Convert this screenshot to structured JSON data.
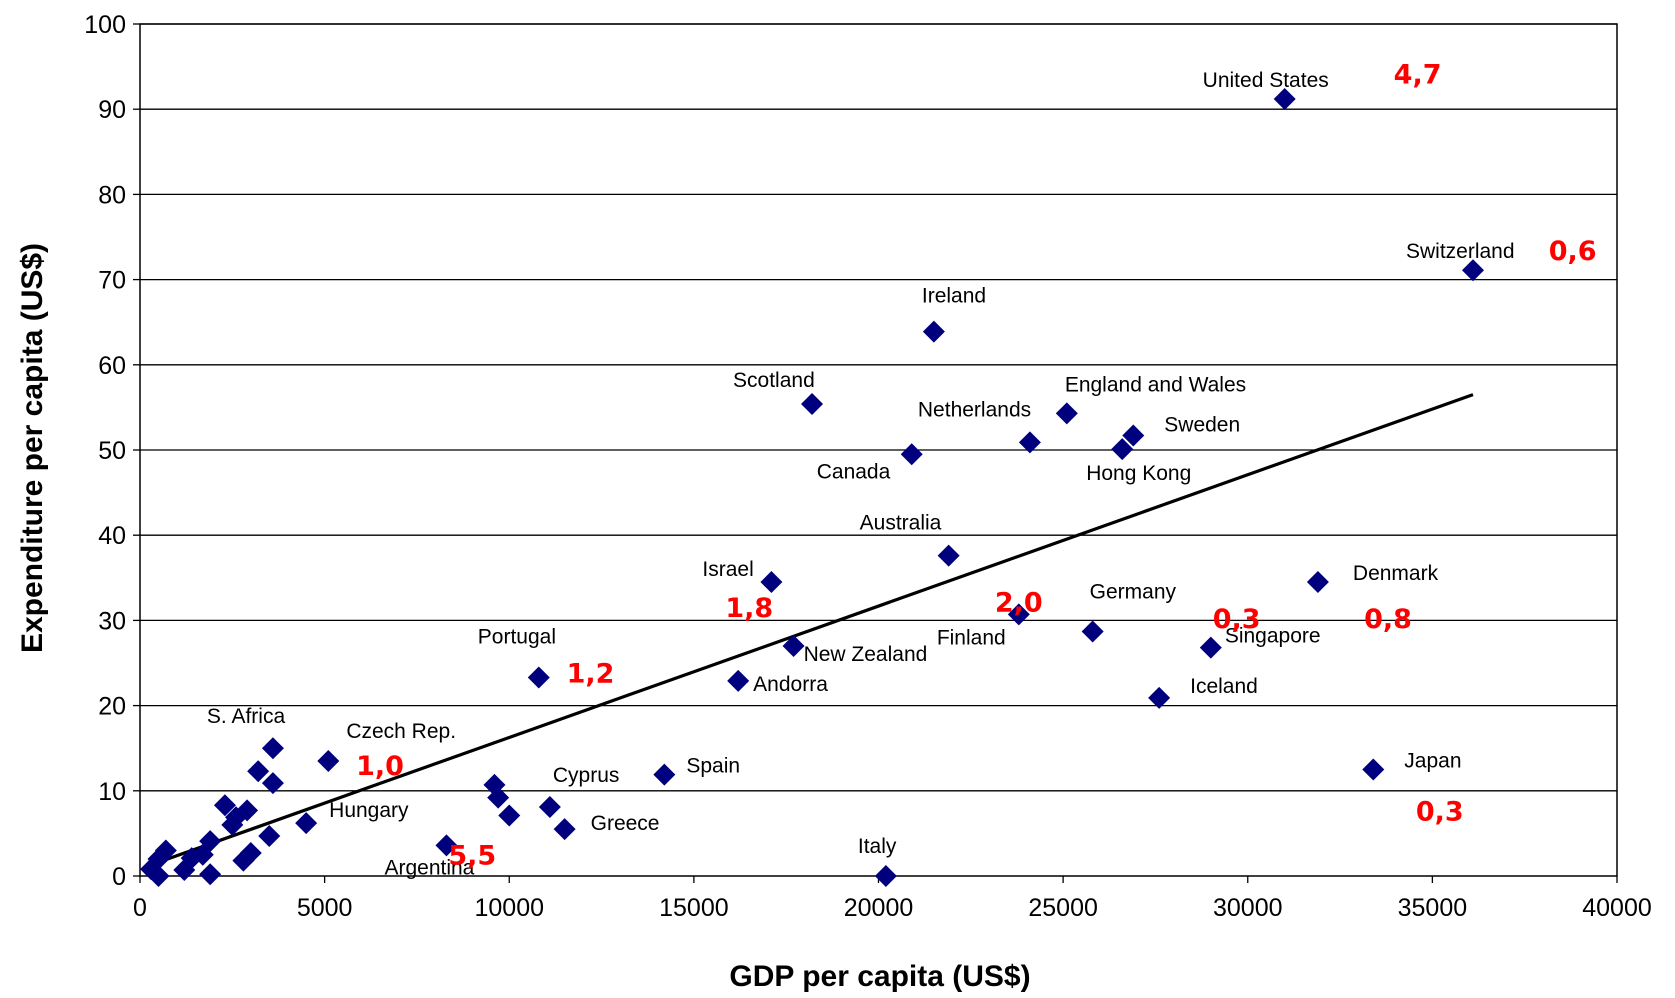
{
  "colors": {
    "marker": "#00007f",
    "annotation": "#ff0000",
    "axis": "#000000",
    "grid": "#000000"
  },
  "chart_data": {
    "type": "scatter",
    "xlabel": "GDP per capita (US$)",
    "ylabel": "Expenditure per capita (US$)",
    "xlim": [
      0,
      40000
    ],
    "ylim": [
      0,
      100
    ],
    "xticks": [
      0,
      5000,
      10000,
      15000,
      20000,
      25000,
      30000,
      35000,
      40000
    ],
    "yticks": [
      0,
      10,
      20,
      30,
      40,
      50,
      60,
      70,
      80,
      90,
      100
    ],
    "grid": "horizontal",
    "series": [
      {
        "points": [
          {
            "x": 31000,
            "y": 91.2,
            "label": "United States"
          },
          {
            "x": 36100,
            "y": 71.1,
            "label": "Switzerland"
          },
          {
            "x": 21500,
            "y": 63.9,
            "label": "Ireland"
          },
          {
            "x": 18200,
            "y": 55.4,
            "label": "Scotland"
          },
          {
            "x": 25100,
            "y": 54.3,
            "label": "England and Wales"
          },
          {
            "x": 24100,
            "y": 50.9,
            "label": "Netherlands"
          },
          {
            "x": 26900,
            "y": 51.7,
            "label": "Sweden"
          },
          {
            "x": 26600,
            "y": 50.1,
            "label": "Hong Kong"
          },
          {
            "x": 20900,
            "y": 49.5,
            "label": "Canada"
          },
          {
            "x": 21900,
            "y": 37.6,
            "label": "Australia"
          },
          {
            "x": 17100,
            "y": 34.5,
            "label": "Israel"
          },
          {
            "x": 31900,
            "y": 34.5,
            "label": "Denmark"
          },
          {
            "x": 23800,
            "y": 30.7,
            "label": "Finland"
          },
          {
            "x": 25800,
            "y": 28.7,
            "label": "Germany"
          },
          {
            "x": 29000,
            "y": 26.8,
            "label": "Singapore"
          },
          {
            "x": 17700,
            "y": 27.0,
            "label": "New Zealand"
          },
          {
            "x": 16200,
            "y": 22.9,
            "label": "Andorra"
          },
          {
            "x": 10800,
            "y": 23.3,
            "label": "Portugal"
          },
          {
            "x": 27600,
            "y": 20.9,
            "label": "Iceland"
          },
          {
            "x": 33400,
            "y": 12.5,
            "label": "Japan"
          },
          {
            "x": 14200,
            "y": 11.9,
            "label": "Spain"
          },
          {
            "x": 5100,
            "y": 13.5,
            "label": "Czech Rep."
          },
          {
            "x": 3600,
            "y": 15.0,
            "label": "S. Africa"
          },
          {
            "x": 4500,
            "y": 6.2,
            "label": "Hungary"
          },
          {
            "x": 11100,
            "y": 8.1,
            "label": "Cyprus"
          },
          {
            "x": 11500,
            "y": 5.5,
            "label": "Greece"
          },
          {
            "x": 8300,
            "y": 3.6,
            "label": "Argentina"
          },
          {
            "x": 20200,
            "y": 0.0,
            "label": "Italy"
          },
          {
            "x": 3200,
            "y": 12.3
          },
          {
            "x": 3600,
            "y": 10.9
          },
          {
            "x": 2300,
            "y": 8.3
          },
          {
            "x": 2900,
            "y": 7.7
          },
          {
            "x": 2600,
            "y": 6.9
          },
          {
            "x": 2500,
            "y": 6.0
          },
          {
            "x": 1900,
            "y": 4.1
          },
          {
            "x": 3500,
            "y": 4.7
          },
          {
            "x": 3000,
            "y": 2.7
          },
          {
            "x": 2800,
            "y": 1.8
          },
          {
            "x": 1400,
            "y": 2.1
          },
          {
            "x": 1700,
            "y": 2.5
          },
          {
            "x": 700,
            "y": 3.0
          },
          {
            "x": 500,
            "y": 2.0
          },
          {
            "x": 1200,
            "y": 0.7
          },
          {
            "x": 1900,
            "y": 0.2
          },
          {
            "x": 300,
            "y": 0.8
          },
          {
            "x": 500,
            "y": 0.0
          },
          {
            "x": 9600,
            "y": 10.7
          },
          {
            "x": 9700,
            "y": 9.2
          },
          {
            "x": 10000,
            "y": 7.1
          }
        ]
      }
    ],
    "trendline": [
      [
        100,
        1.0
      ],
      [
        36100,
        56.5
      ]
    ],
    "annotations": [
      {
        "text": "4,7",
        "x": 34600,
        "y": 94.2
      },
      {
        "text": "0,6",
        "x": 38800,
        "y": 73.5
      },
      {
        "text": "1,8",
        "x": 16500,
        "y": 31.6
      },
      {
        "text": "2,0",
        "x": 23800,
        "y": 32.2
      },
      {
        "text": "0,3",
        "x": 29700,
        "y": 30.3
      },
      {
        "text": "0,8",
        "x": 33800,
        "y": 30.3
      },
      {
        "text": "1,2",
        "x": 12200,
        "y": 23.9
      },
      {
        "text": "1,0",
        "x": 6500,
        "y": 13.0
      },
      {
        "text": "5,5",
        "x": 9000,
        "y": 2.5
      },
      {
        "text": "0,3",
        "x": 35200,
        "y": 7.7
      }
    ]
  }
}
